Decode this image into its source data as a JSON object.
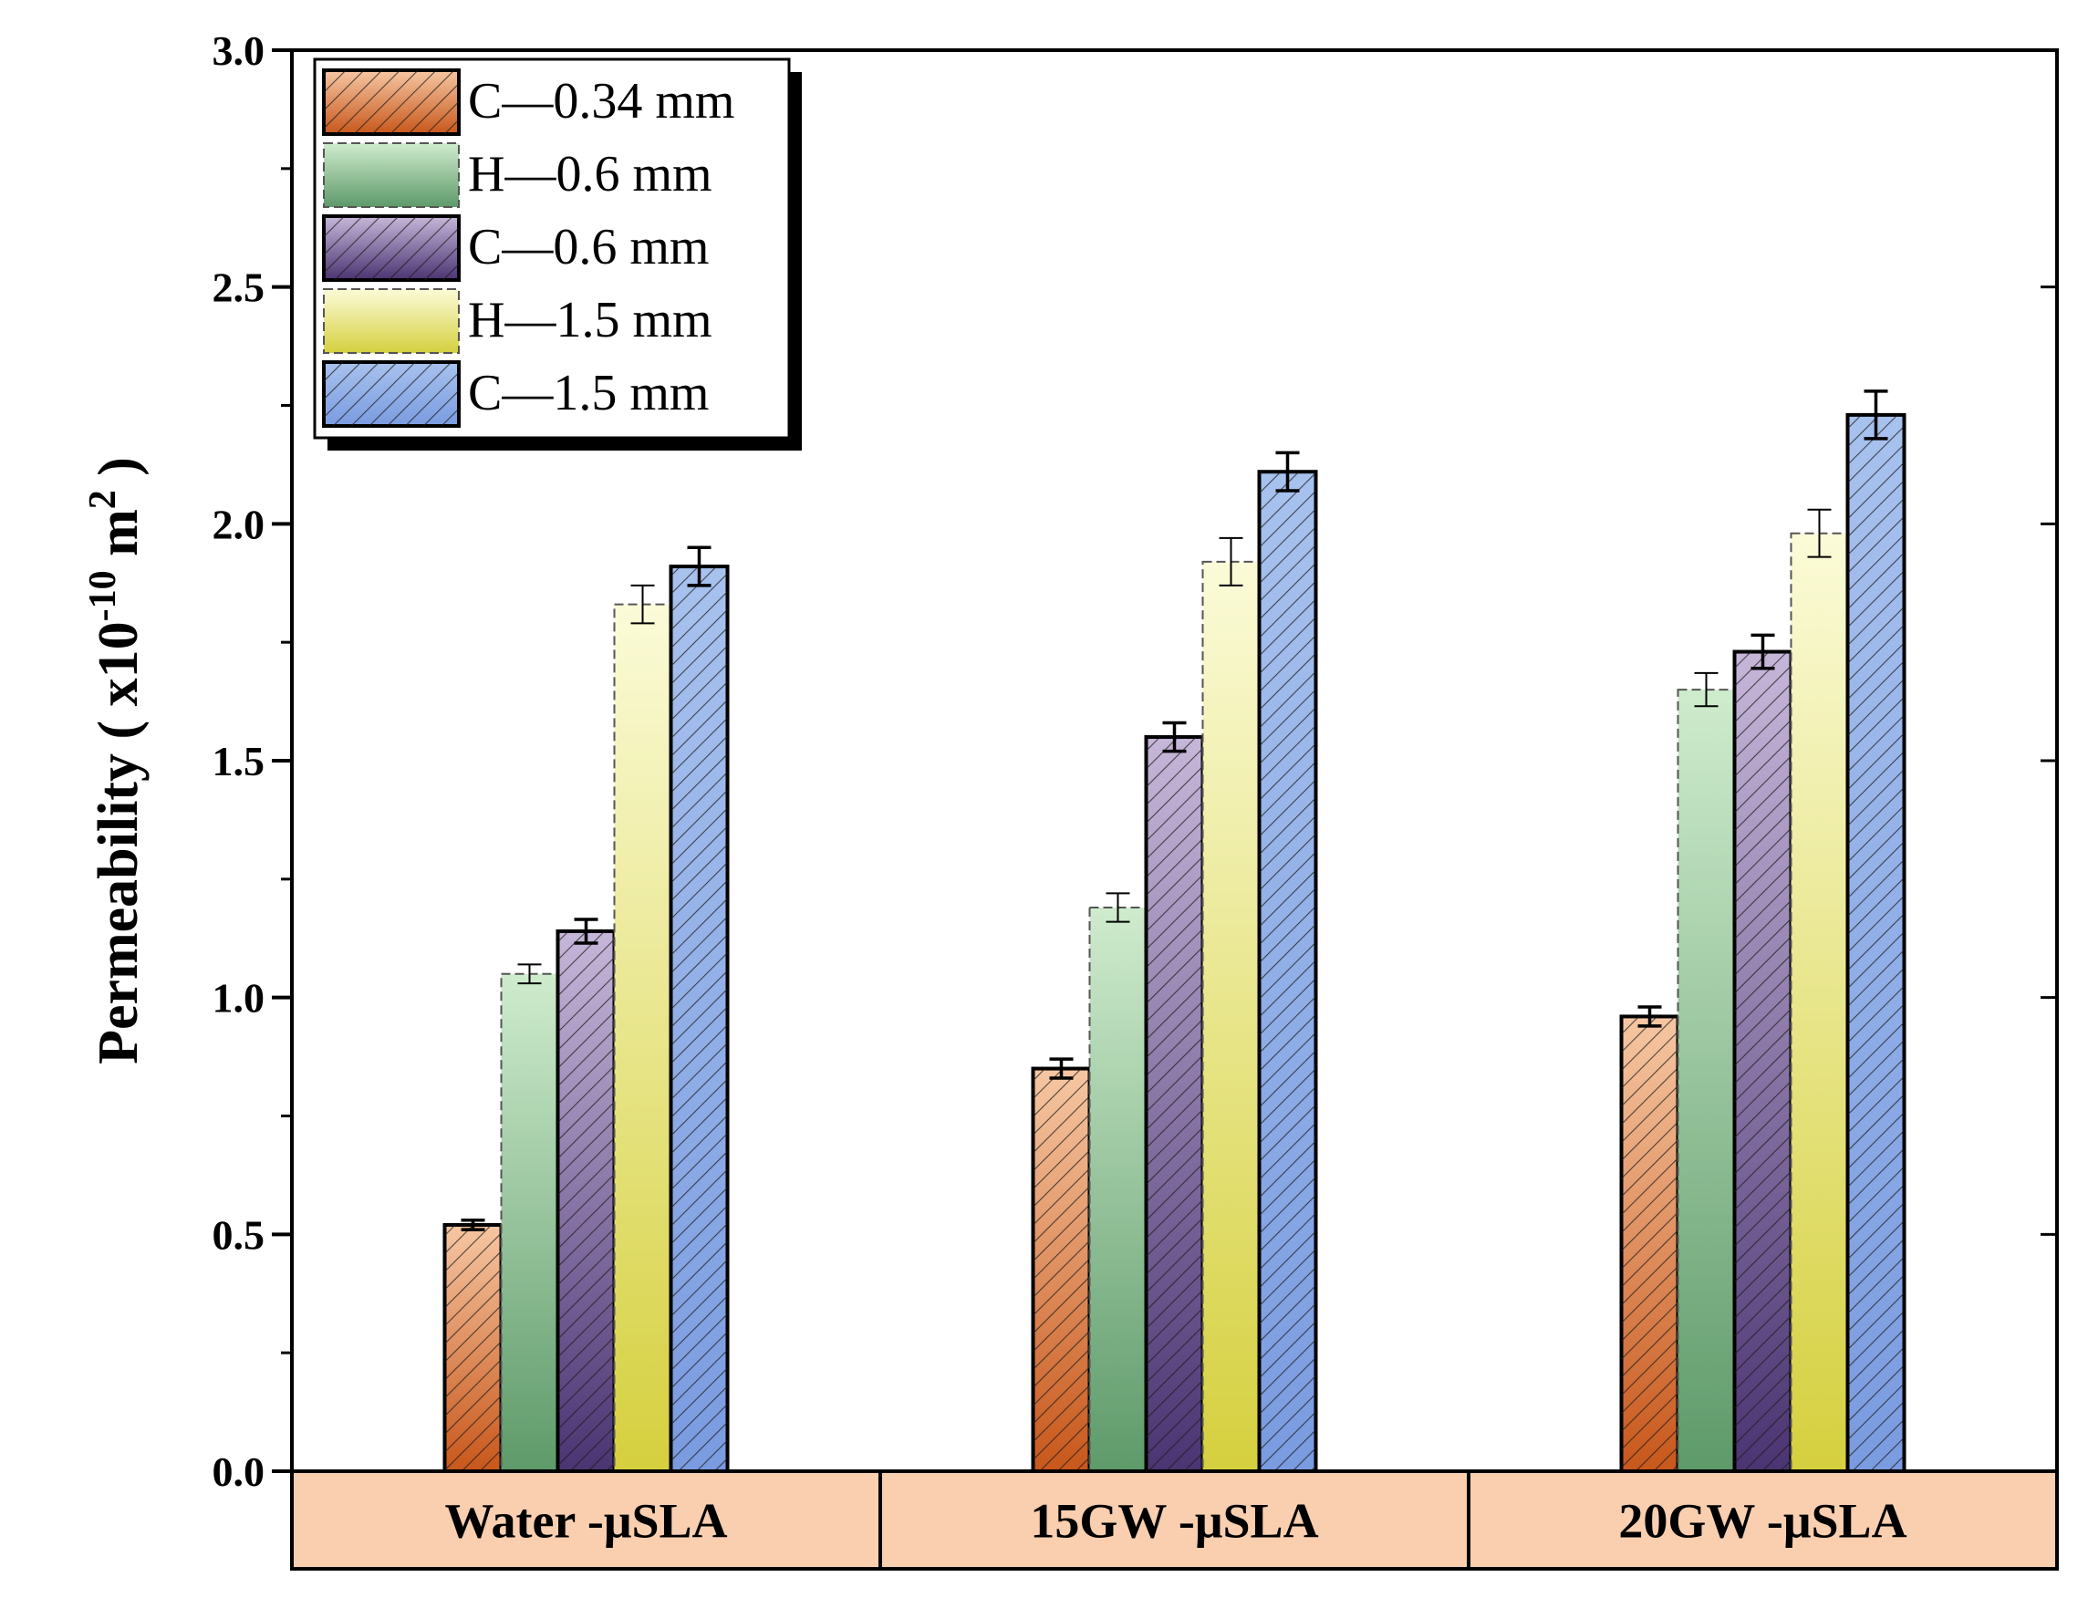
{
  "chart_data": {
    "type": "bar",
    "title": "",
    "xlabel": "",
    "ylabel": "Permeability ( x10",
    "ylabel_exp": "-10",
    "ylabel_unit": " m",
    "ylabel_unit_exp": "2",
    "ylabel_close": " )",
    "ylim": [
      0,
      3.0
    ],
    "yticks": [
      "0.0",
      "0.5",
      "1.0",
      "1.5",
      "2.0",
      "2.5",
      "3.0"
    ],
    "categories": [
      "Water -μSLA",
      "15GW -μSLA",
      "20GW -μSLA"
    ],
    "series": [
      {
        "name": "C—0.34 mm",
        "values": [
          0.52,
          0.85,
          0.96
        ],
        "errors": [
          0.01,
          0.02,
          0.02
        ],
        "colors": [
          "#f6c7a3",
          "#c8571b"
        ],
        "hatch": true,
        "outline": "#000000"
      },
      {
        "name": "H—0.6 mm",
        "values": [
          1.05,
          1.19,
          1.65
        ],
        "errors": [
          0.02,
          0.03,
          0.035
        ],
        "colors": [
          "#cfeccd",
          "#5e9a6a"
        ],
        "hatch": false,
        "outline": "#555555"
      },
      {
        "name": "C—0.6 mm",
        "values": [
          1.14,
          1.55,
          1.73
        ],
        "errors": [
          0.025,
          0.03,
          0.035
        ],
        "colors": [
          "#c6b7d9",
          "#4b3472"
        ],
        "hatch": true,
        "outline": "#000000"
      },
      {
        "name": "H—1.5 mm",
        "values": [
          1.83,
          1.92,
          1.98
        ],
        "errors": [
          0.04,
          0.05,
          0.05
        ],
        "colors": [
          "#fbfbd8",
          "#d5d03e"
        ],
        "hatch": false,
        "outline": "#555555"
      },
      {
        "name": "C—1.5 mm",
        "values": [
          1.91,
          2.11,
          2.23
        ],
        "errors": [
          0.04,
          0.04,
          0.05
        ],
        "colors": [
          "#a8c2ee",
          "#7a9be0"
        ],
        "hatch": true,
        "outline": "#000000"
      }
    ],
    "category_band_color": "#f9cfb0",
    "legend_position": "top-left"
  }
}
